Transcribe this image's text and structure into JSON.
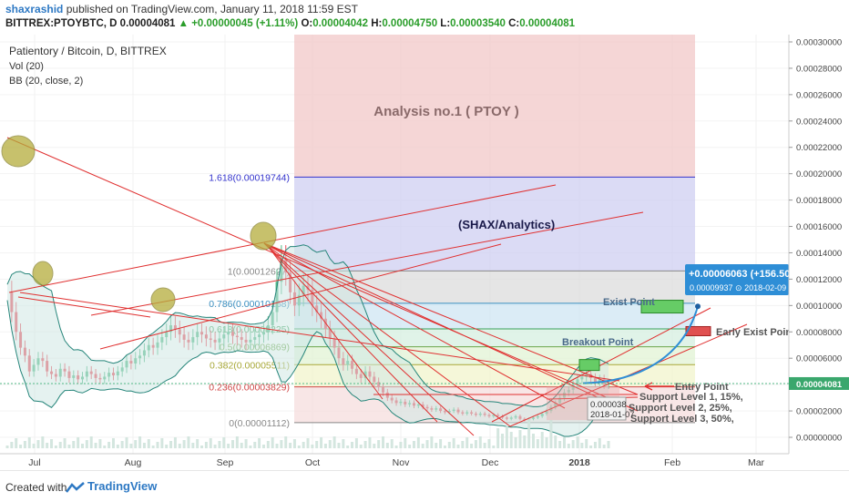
{
  "header": {
    "author": "shaxrashid",
    "published": "published on TradingView.com, January 11, 2018 11:59 EST",
    "symbol": "BITTREX:PTOYBTC, D",
    "last": "0.00004081",
    "change": "▲ +0.00000045 (+1.11%)",
    "o_label": "O:",
    "o_value": "0.00004042",
    "h_label": "H:",
    "h_value": "0.00004750",
    "l_label": "L:",
    "l_value": "0.00003540",
    "c_label": "C:",
    "c_value": "0.00004081"
  },
  "legend": {
    "title": "Patientory / Bitcoin, D, BITTREX",
    "vol": "Vol (20)",
    "bb": "BB (20, close, 2)"
  },
  "chart_data": {
    "type": "candlestick",
    "x_ticks": [
      "Jul",
      "Aug",
      "Sep",
      "Oct",
      "Nov",
      "Dec",
      "2018",
      "Feb",
      "Mar"
    ],
    "y_ticks": [
      "0.00030000",
      "0.00028000",
      "0.00026000",
      "0.00024000",
      "0.00022000",
      "0.00020000",
      "0.00018000",
      "0.00016000",
      "0.00014000",
      "0.00012000",
      "0.00010000",
      "0.00008000",
      "0.00006000",
      "0.00004000",
      "0.00002000",
      "0.00000000"
    ],
    "ylim": [
      0,
      0.0003
    ],
    "current_price_label": "0.00004081",
    "fib_levels": [
      {
        "label": "1.618(0.00019744)",
        "value": 0.00019744
      },
      {
        "label": "1(0.00012627)",
        "value": 0.00012627
      },
      {
        "label": "0.786(0.00010168)",
        "value": 0.00010168
      },
      {
        "label": "0.618(0.00008225)",
        "value": 8.225e-05
      },
      {
        "label": "0.5(0.00006869)",
        "value": 6.869e-05
      },
      {
        "label": "0.382(0.00005511)",
        "value": 5.511e-05
      },
      {
        "label": "0.236(0.00003829)",
        "value": 3.829e-05
      },
      {
        "label": "0(0.00001112)",
        "value": 1.112e-05
      }
    ],
    "annotations": {
      "analysis": "Analysis no.1 ( PTOY )",
      "brand": "(SHAX/Analytics)",
      "exist_point": "Exist Point",
      "early_exist": "Early Exist Poir",
      "breakout": "Breakout Point",
      "entry": "Entry Point",
      "support1": "Support Level 1, 15%,",
      "support2": "Support Level 2, 25%,",
      "support3": "Support Level 3, 50%,",
      "projection": "+0.00006063 (+156.50",
      "projection_sub": "0.00009937  ⊙ 2018-02-09",
      "date_tag_price": "0.000038",
      "date_tag_date": "2018-01-07"
    },
    "colors": {
      "candle_up": "#53b987",
      "candle_down": "#eb4d5c",
      "bb_line": "#26857a",
      "bb_fill": "#cfe8e4",
      "trend_line": "#e03030",
      "analysis_box": "#f2c8c8",
      "fib_top": "#cfcff2",
      "projection": "#2e8ed6",
      "price_tag": "#2e8ed6"
    }
  },
  "footer": {
    "created": "Created with",
    "brand": "TradingView"
  }
}
